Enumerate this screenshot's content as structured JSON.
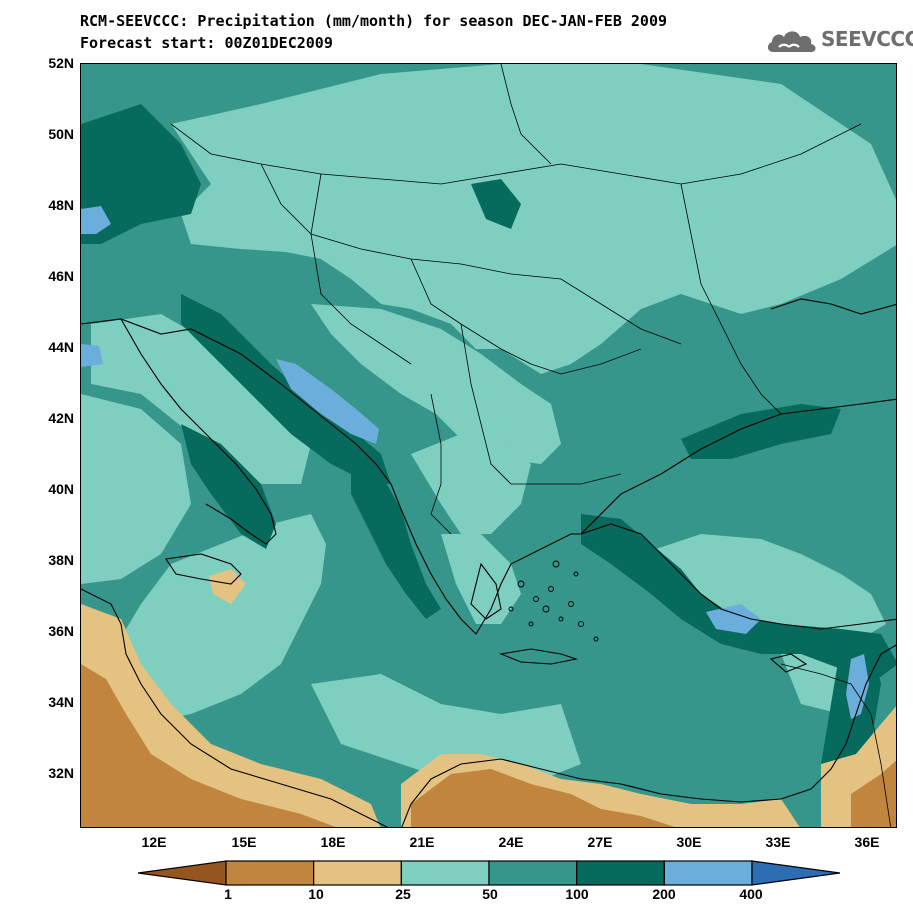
{
  "title_line1": "RCM-SEEVCCC: Precipitation (mm/month) for season DEC-JAN-FEB 2009",
  "title_line2": "Forecast start: 00Z01DEC2009",
  "logo": {
    "text": "SEEVCCC",
    "icon": "cloud-icon"
  },
  "map": {
    "lat_labels": [
      "52N",
      "50N",
      "48N",
      "46N",
      "44N",
      "42N",
      "40N",
      "38N",
      "36N",
      "34N",
      "32N"
    ],
    "lon_labels": [
      "12E",
      "15E",
      "18E",
      "21E",
      "24E",
      "27E",
      "30E",
      "33E",
      "36E"
    ]
  },
  "colorbar": {
    "thresholds": [
      "1",
      "10",
      "25",
      "50",
      "100",
      "200",
      "400"
    ],
    "colors": [
      "#94561c",
      "#c2853d",
      "#e3c282",
      "#7ecfbf",
      "#37968b",
      "#066a5c",
      "#6caedb",
      "#2b6eb3"
    ]
  }
}
